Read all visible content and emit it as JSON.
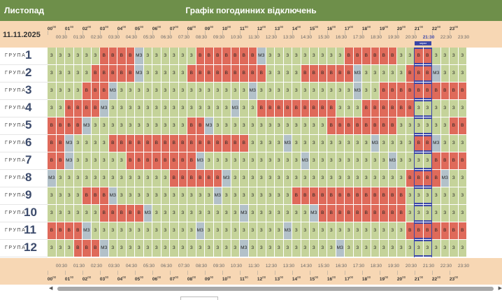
{
  "month_label": "Листопад",
  "title": "Графік погодинних відключень",
  "date": "11.11.2025",
  "group_word": "ГРУПА",
  "groups": [
    "1",
    "2",
    "3",
    "4",
    "5",
    "6",
    "7",
    "8",
    "9",
    "10",
    "11",
    "12"
  ],
  "hours": [
    "00",
    "01",
    "02",
    "03",
    "04",
    "05",
    "06",
    "07",
    "08",
    "09",
    "10",
    "11",
    "12",
    "13",
    "14",
    "15",
    "16",
    "17",
    "18",
    "19",
    "20",
    "21",
    "22",
    "23"
  ],
  "minutes_suffix": "00",
  "half_hours": [
    "00:30",
    "01:30",
    "02:30",
    "03:30",
    "04:30",
    "05:30",
    "06:30",
    "07:30",
    "08:30",
    "09:30",
    "10:30",
    "11:30",
    "12:30",
    "13:30",
    "14:30",
    "15:30",
    "16:30",
    "17:30",
    "18:30",
    "19:30",
    "20:30",
    "21:30",
    "22:30",
    "23:30"
  ],
  "current_slot_index": 43,
  "current_marker_text": "зараз",
  "legend_codes": {
    "on": "З",
    "off": "В",
    "maybe": "МЗ"
  },
  "colors": {
    "on": "#c5d39a",
    "off": "#df6a5a",
    "maybe": "#b3c1c9",
    "header": "#f7d7b4",
    "titlebar": "#6e8f4a",
    "current": "#3a46a8"
  },
  "grid": [
    [
      "З",
      "З",
      "З",
      "З",
      "З",
      "З",
      "В",
      "В",
      "В",
      "В",
      "МЗ",
      "З",
      "З",
      "З",
      "З",
      "З",
      "З",
      "В",
      "В",
      "В",
      "В",
      "В",
      "В",
      "В",
      "МЗ",
      "З",
      "З",
      "З",
      "З",
      "З",
      "З",
      "З",
      "З",
      "З",
      "В",
      "В",
      "В",
      "В",
      "В",
      "В",
      "З",
      "З",
      "В",
      "В",
      "З",
      "З",
      "З",
      "З"
    ],
    [
      "З",
      "З",
      "З",
      "З",
      "З",
      "В",
      "В",
      "В",
      "В",
      "В",
      "МЗ",
      "З",
      "З",
      "З",
      "З",
      "З",
      "В",
      "В",
      "В",
      "В",
      "В",
      "В",
      "В",
      "В",
      "В",
      "З",
      "З",
      "З",
      "З",
      "В",
      "В",
      "В",
      "В",
      "В",
      "В",
      "МЗ",
      "З",
      "З",
      "З",
      "З",
      "З",
      "В",
      "В",
      "В",
      "МЗ",
      "З",
      "З",
      "З"
    ],
    [
      "З",
      "З",
      "З",
      "З",
      "В",
      "В",
      "В",
      "МЗ",
      "З",
      "З",
      "З",
      "З",
      "З",
      "З",
      "З",
      "З",
      "З",
      "З",
      "З",
      "З",
      "З",
      "З",
      "З",
      "МЗ",
      "З",
      "З",
      "З",
      "З",
      "З",
      "З",
      "З",
      "З",
      "З",
      "З",
      "З",
      "МЗ",
      "З",
      "З",
      "В",
      "В",
      "В",
      "В",
      "В",
      "В",
      "В",
      "В",
      "В",
      "В"
    ],
    [
      "З",
      "З",
      "В",
      "В",
      "В",
      "В",
      "МЗ",
      "З",
      "З",
      "З",
      "З",
      "З",
      "З",
      "З",
      "З",
      "З",
      "З",
      "З",
      "З",
      "З",
      "З",
      "МЗ",
      "З",
      "З",
      "В",
      "В",
      "В",
      "В",
      "В",
      "В",
      "В",
      "В",
      "В",
      "З",
      "З",
      "З",
      "В",
      "В",
      "В",
      "В",
      "В",
      "В",
      "З",
      "З",
      "З",
      "З",
      "З",
      "З"
    ],
    [
      "В",
      "В",
      "В",
      "В",
      "МЗ",
      "З",
      "З",
      "З",
      "З",
      "З",
      "З",
      "З",
      "З",
      "З",
      "З",
      "З",
      "В",
      "В",
      "МЗ",
      "З",
      "З",
      "З",
      "З",
      "З",
      "З",
      "З",
      "З",
      "З",
      "З",
      "З",
      "З",
      "З",
      "В",
      "В",
      "В",
      "В",
      "В",
      "В",
      "В",
      "В",
      "З",
      "З",
      "З",
      "З",
      "З",
      "З",
      "В",
      "В"
    ],
    [
      "В",
      "В",
      "МЗ",
      "З",
      "З",
      "З",
      "З",
      "В",
      "В",
      "В",
      "В",
      "В",
      "В",
      "В",
      "В",
      "В",
      "В",
      "В",
      "В",
      "В",
      "В",
      "В",
      "В",
      "З",
      "З",
      "З",
      "З",
      "МЗ",
      "З",
      "З",
      "З",
      "З",
      "З",
      "З",
      "З",
      "З",
      "З",
      "МЗ",
      "З",
      "З",
      "З",
      "З",
      "В",
      "В",
      "МЗ",
      "З",
      "З",
      "З"
    ],
    [
      "В",
      "В",
      "МЗ",
      "З",
      "З",
      "З",
      "З",
      "З",
      "З",
      "В",
      "В",
      "В",
      "В",
      "В",
      "В",
      "В",
      "В",
      "МЗ",
      "З",
      "З",
      "З",
      "З",
      "З",
      "З",
      "З",
      "З",
      "З",
      "З",
      "З",
      "МЗ",
      "З",
      "З",
      "З",
      "З",
      "З",
      "З",
      "З",
      "З",
      "З",
      "МЗ",
      "З",
      "З",
      "З",
      "З",
      "В",
      "В",
      "В",
      "В"
    ],
    [
      "МЗ",
      "З",
      "З",
      "З",
      "З",
      "З",
      "З",
      "З",
      "З",
      "З",
      "З",
      "З",
      "З",
      "З",
      "В",
      "В",
      "В",
      "В",
      "В",
      "В",
      "МЗ",
      "З",
      "З",
      "З",
      "З",
      "З",
      "З",
      "З",
      "З",
      "З",
      "З",
      "З",
      "З",
      "З",
      "З",
      "З",
      "З",
      "З",
      "З",
      "З",
      "З",
      "В",
      "В",
      "В",
      "В",
      "МЗ",
      "З",
      "З"
    ],
    [
      "З",
      "З",
      "З",
      "З",
      "В",
      "В",
      "В",
      "МЗ",
      "З",
      "З",
      "З",
      "З",
      "З",
      "З",
      "З",
      "З",
      "З",
      "З",
      "З",
      "МЗ",
      "З",
      "З",
      "З",
      "З",
      "З",
      "З",
      "З",
      "З",
      "В",
      "В",
      "В",
      "В",
      "В",
      "В",
      "В",
      "В",
      "В",
      "В",
      "В",
      "В",
      "В",
      "З",
      "З",
      "З",
      "З",
      "З",
      "З",
      "З"
    ],
    [
      "З",
      "З",
      "З",
      "З",
      "З",
      "З",
      "В",
      "В",
      "В",
      "В",
      "В",
      "МЗ",
      "З",
      "З",
      "З",
      "З",
      "З",
      "З",
      "З",
      "З",
      "З",
      "З",
      "МЗ",
      "З",
      "З",
      "З",
      "З",
      "З",
      "З",
      "З",
      "МЗ",
      "В",
      "В",
      "В",
      "В",
      "В",
      "В",
      "В",
      "В",
      "В",
      "В",
      "З",
      "З",
      "З",
      "З",
      "З",
      "З",
      "З"
    ],
    [
      "В",
      "В",
      "В",
      "В",
      "МЗ",
      "З",
      "З",
      "З",
      "З",
      "З",
      "З",
      "З",
      "З",
      "З",
      "З",
      "З",
      "З",
      "МЗ",
      "З",
      "З",
      "З",
      "З",
      "З",
      "З",
      "З",
      "З",
      "З",
      "МЗ",
      "З",
      "З",
      "З",
      "З",
      "З",
      "З",
      "З",
      "З",
      "З",
      "З",
      "З",
      "З",
      "З",
      "В",
      "В",
      "В",
      "В",
      "В",
      "В",
      "В"
    ],
    [
      "З",
      "З",
      "З",
      "В",
      "В",
      "В",
      "МЗ",
      "З",
      "З",
      "З",
      "З",
      "З",
      "З",
      "З",
      "З",
      "З",
      "З",
      "З",
      "З",
      "З",
      "З",
      "З",
      "МЗ",
      "З",
      "З",
      "З",
      "З",
      "З",
      "З",
      "З",
      "З",
      "З",
      "З",
      "МЗ",
      "З",
      "З",
      "З",
      "З",
      "З",
      "З",
      "З",
      "З",
      "З",
      "З",
      "З",
      "З",
      "З",
      "З"
    ]
  ]
}
